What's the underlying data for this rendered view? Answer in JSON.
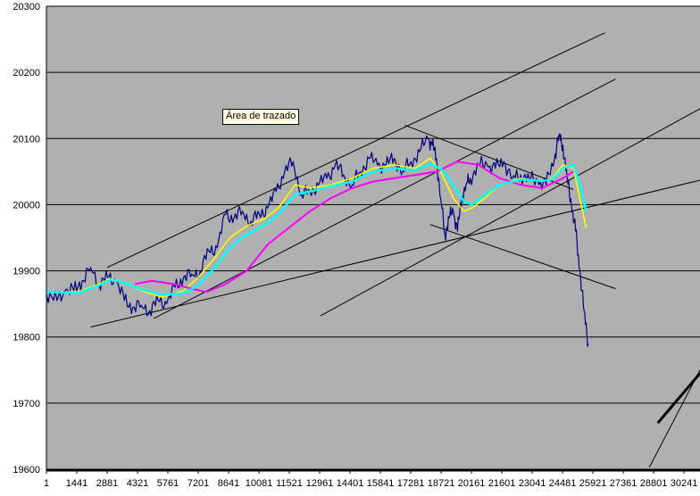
{
  "chart_data": {
    "type": "line",
    "title": "",
    "xlabel": "",
    "ylabel": "",
    "ylim": [
      19600,
      20300
    ],
    "xlim": [
      1,
      31000
    ],
    "y_ticks": [
      "19600",
      "19700",
      "19800",
      "19900",
      "20000",
      "20100",
      "20200",
      "20300"
    ],
    "x_ticks": [
      "1",
      "1441",
      "2881",
      "4321",
      "5761",
      "7201",
      "8641",
      "10081",
      "11521",
      "12961",
      "14401",
      "15841",
      "17281",
      "18721",
      "20161",
      "21601",
      "23041",
      "24481",
      "25921",
      "27361",
      "28801",
      "30241"
    ],
    "grid": "horizontal",
    "legend": "none",
    "tooltip": "Área de trazado",
    "colors": {
      "plot_area": "#b0b0b0",
      "price": "#000080",
      "ma_fast": "#ffff00",
      "ma_medium": "#00ffff",
      "ma_slow": "#ff00ff",
      "trendlines": "#000000"
    },
    "series": [
      {
        "role": "price",
        "x": [
          1,
          500,
          900,
          1300,
          1700,
          2100,
          2500,
          2900,
          3300,
          3700,
          4100,
          4500,
          4900,
          5300,
          5700,
          6100,
          6500,
          6900,
          7300,
          7700,
          8100,
          8500,
          8900,
          9300,
          9700,
          10100,
          10500,
          10900,
          11300,
          11700,
          12100,
          12500,
          12900,
          13300,
          13700,
          14100,
          14500,
          14900,
          15300,
          15700,
          16100,
          16500,
          16900,
          17300,
          17700,
          18100,
          18300,
          18500,
          18700,
          18900,
          19100,
          19300,
          19500,
          19700,
          19900,
          20100,
          20500,
          20900,
          21300,
          21700,
          22100,
          22500,
          22900,
          23300,
          23700,
          24100,
          24300,
          24500,
          24700,
          24900,
          25100,
          25300,
          25500,
          25700
        ],
        "y": [
          19865,
          19855,
          19870,
          19870,
          19885,
          19905,
          19880,
          19890,
          19885,
          19855,
          19845,
          19848,
          19840,
          19855,
          19850,
          19875,
          19890,
          19895,
          19900,
          19930,
          19935,
          19985,
          19980,
          19990,
          19975,
          19985,
          19995,
          20020,
          20050,
          20065,
          20015,
          20020,
          20030,
          20040,
          20060,
          20045,
          20030,
          20050,
          20070,
          20060,
          20060,
          20070,
          20050,
          20065,
          20080,
          20100,
          20090,
          20070,
          20010,
          19955,
          19980,
          19990,
          19960,
          20010,
          20030,
          20040,
          20060,
          20060,
          20055,
          20065,
          20040,
          20045,
          20040,
          20035,
          20030,
          20070,
          20105,
          20090,
          20040,
          20000,
          19960,
          19900,
          19840,
          19790
        ]
      },
      {
        "role": "ma_fast",
        "x": [
          1,
          1500,
          2500,
          3000,
          3500,
          4500,
          5500,
          6500,
          7200,
          8000,
          8700,
          9500,
          10300,
          11000,
          11800,
          12500,
          13500,
          14500,
          15500,
          16500,
          17500,
          18200,
          18700,
          19300,
          19800,
          20200,
          20800,
          21500,
          22500,
          23500,
          24000,
          24500,
          25000,
          25300,
          25600
        ],
        "y": [
          19868,
          19868,
          19880,
          19888,
          19885,
          19870,
          19860,
          19870,
          19890,
          19920,
          19950,
          19968,
          19978,
          19995,
          20030,
          20025,
          20030,
          20040,
          20055,
          20060,
          20055,
          20070,
          20050,
          20010,
          19990,
          19995,
          20010,
          20030,
          20040,
          20035,
          20040,
          20060,
          20055,
          20010,
          19965
        ]
      },
      {
        "role": "ma_medium",
        "x": [
          1,
          1500,
          2500,
          3000,
          3500,
          4500,
          5500,
          6500,
          7200,
          8000,
          8700,
          9500,
          10300,
          11000,
          11800,
          12500,
          13500,
          14500,
          15500,
          16500,
          17500,
          18200,
          18700,
          19300,
          19800,
          20200,
          20800,
          21500,
          22500,
          23500,
          24000,
          24500,
          25000,
          25300,
          25600
        ],
        "y": [
          19868,
          19866,
          19878,
          19886,
          19884,
          19872,
          19864,
          19866,
          19878,
          19905,
          19935,
          19955,
          19968,
          19985,
          20015,
          20020,
          20028,
          20035,
          20050,
          20055,
          20052,
          20062,
          20055,
          20030,
          20005,
          20000,
          20015,
          20030,
          20038,
          20036,
          20038,
          20055,
          20060,
          20030,
          19990
        ]
      },
      {
        "role": "ma_slow",
        "x": [
          4200,
          5000,
          6000,
          7000,
          7600,
          8500,
          9500,
          10500,
          11500,
          12500,
          13500,
          14500,
          15500,
          16500,
          17500,
          18500,
          19500,
          20500,
          21500,
          22500,
          23500,
          24500,
          25000
        ],
        "y": [
          19880,
          19885,
          19880,
          19872,
          19868,
          19880,
          19900,
          19940,
          19965,
          19990,
          20010,
          20025,
          20035,
          20040,
          20045,
          20050,
          20065,
          20060,
          20040,
          20030,
          20025,
          20040,
          20050
        ]
      }
    ],
    "trendlines": [
      {
        "x": [
          2881,
          26500
        ],
        "y": [
          19905,
          20260
        ]
      },
      {
        "x": [
          5100,
          27000
        ],
        "y": [
          19828,
          20190
        ]
      },
      {
        "x": [
          13000,
          31000
        ],
        "y": [
          19832,
          20145
        ]
      },
      {
        "x": [
          2100,
          31000
        ],
        "y": [
          19815,
          20037
        ]
      },
      {
        "x": [
          17000,
          25000
        ],
        "y": [
          20120,
          20023
        ]
      },
      {
        "x": [
          18200,
          27000
        ],
        "y": [
          19970,
          19873
        ]
      },
      {
        "x": [
          28600,
          31000
        ],
        "y": [
          19603,
          19750
        ]
      },
      {
        "x": [
          29000,
          31000
        ],
        "y": [
          19670,
          19745
        ],
        "weight": "bold"
      }
    ]
  }
}
